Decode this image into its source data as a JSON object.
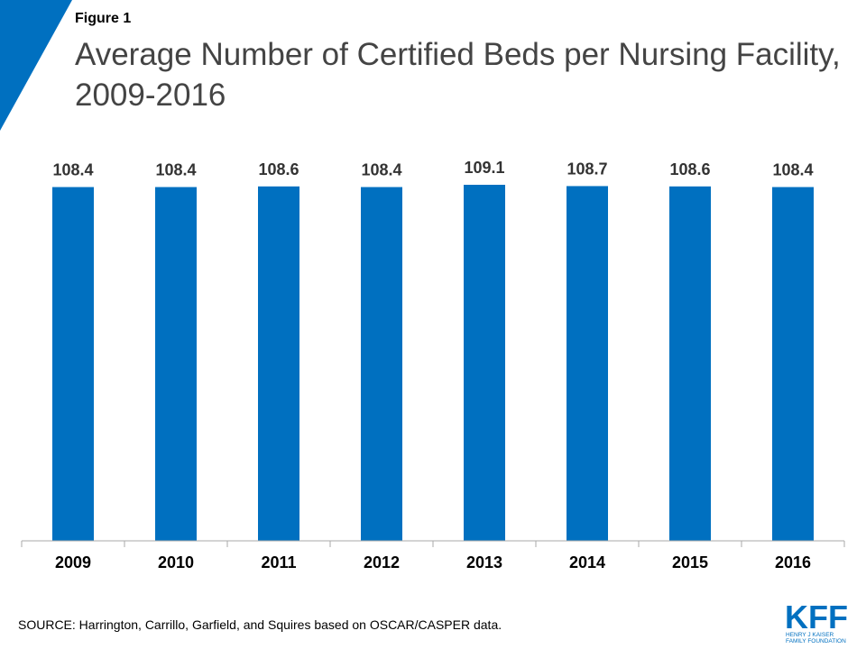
{
  "figure_label": "Figure 1",
  "title": "Average Number of Certified Beds per Nursing Facility, 2009-2016",
  "source": "SOURCE: Harrington,  Carrillo, Garfield, and Squires based on OSCAR/CASPER data.",
  "logo": {
    "wordmark": "KFF",
    "line1": "HENRY J KAISER",
    "line2": "FAMILY FOUNDATION"
  },
  "colors": {
    "bar": "#0070c0",
    "accent": "#0070c0",
    "title": "#444444"
  },
  "chart_data": {
    "type": "bar",
    "categories": [
      "2009",
      "2010",
      "2011",
      "2012",
      "2013",
      "2014",
      "2015",
      "2016"
    ],
    "values": [
      108.4,
      108.4,
      108.6,
      108.4,
      109.1,
      108.7,
      108.6,
      108.4
    ],
    "data_labels": [
      "108.4",
      "108.4",
      "108.6",
      "108.4",
      "109.1",
      "108.7",
      "108.6",
      "108.4"
    ],
    "title": "Average Number of Certified Beds per Nursing Facility, 2009-2016",
    "xlabel": "",
    "ylabel": "",
    "y_axis_visible": false,
    "grid": false,
    "legend": "none"
  }
}
